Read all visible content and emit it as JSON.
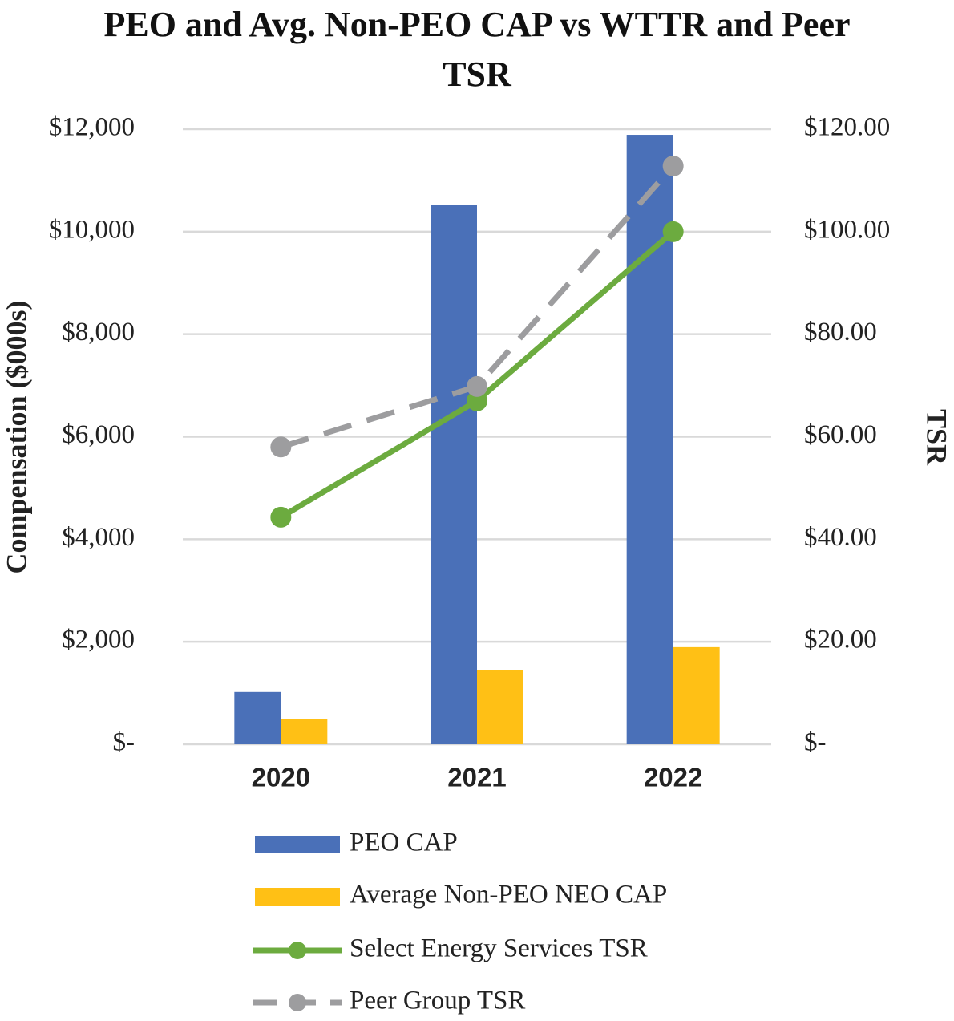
{
  "chart_data": {
    "type": "bar",
    "title": "PEO and Avg. Non-PEO CAP vs WTTR and Peer TSR",
    "y_label": "Compensation ($000s)",
    "y2_label": "TSR",
    "categories": [
      "2020",
      "2021",
      "2022"
    ],
    "series": [
      {
        "name": "PEO CAP",
        "type": "bar",
        "color": "#4a70b8",
        "values": [
          1020,
          10520,
          11890
        ]
      },
      {
        "name": "Average Non-PEO NEO CAP",
        "type": "bar",
        "color": "#ffc015",
        "values": [
          490,
          1455,
          1895
        ]
      },
      {
        "name": "Select Energy Services TSR",
        "type": "line",
        "axis": "y2",
        "color": "#6cab3f",
        "line_style": "solid",
        "values": [
          44.3,
          67.0,
          100.0
        ]
      },
      {
        "name": "Peer Group TSR",
        "type": "line",
        "axis": "y2",
        "color": "#9d9d9f",
        "line_style": "dashed",
        "values": [
          58.0,
          69.8,
          112.8
        ]
      }
    ],
    "ylim": [
      0,
      12000
    ],
    "yticks": [
      {
        "value": 0,
        "label": "$-"
      },
      {
        "value": 2000,
        "label": "$2,000"
      },
      {
        "value": 4000,
        "label": "$4,000"
      },
      {
        "value": 6000,
        "label": "$6,000"
      },
      {
        "value": 8000,
        "label": "$8,000"
      },
      {
        "value": 10000,
        "label": "$10,000"
      },
      {
        "value": 12000,
        "label": "$12,000"
      }
    ],
    "y2lim": [
      0,
      120
    ],
    "y2ticks": [
      {
        "value": 0,
        "label": "$-"
      },
      {
        "value": 20,
        "label": "$20.00"
      },
      {
        "value": 40,
        "label": "$40.00"
      },
      {
        "value": 60,
        "label": "$60.00"
      },
      {
        "value": 80,
        "label": "$80.00"
      },
      {
        "value": 100,
        "label": "$100.00"
      },
      {
        "value": 120,
        "label": "$120.00"
      }
    ],
    "grid": true,
    "legend": "bottom"
  }
}
